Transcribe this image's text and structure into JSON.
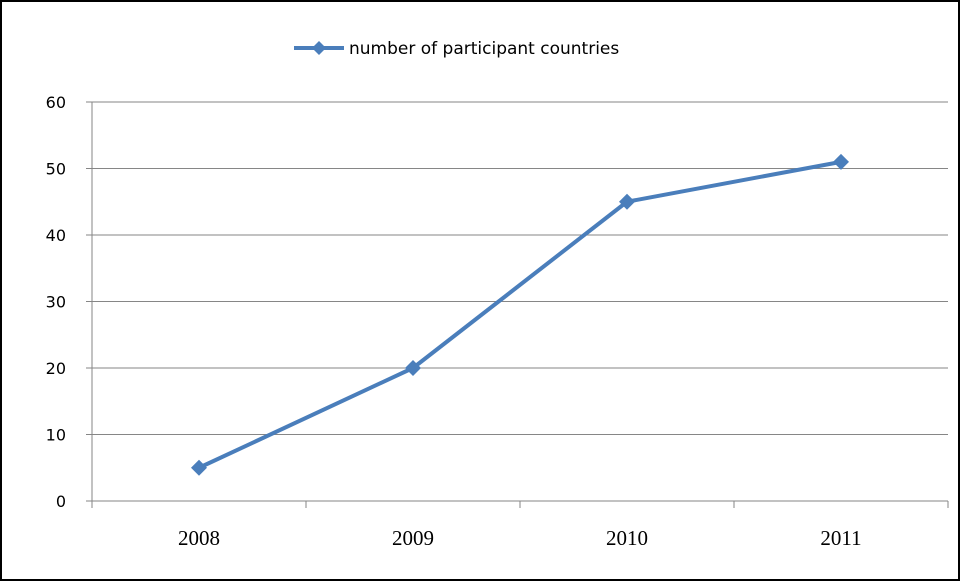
{
  "chart_data": {
    "type": "line",
    "title": "",
    "xlabel": "",
    "ylabel": "",
    "categories": [
      "2008",
      "2009",
      "2010",
      "2011"
    ],
    "series": [
      {
        "name": "number of participant countries",
        "values": [
          5,
          20,
          45,
          51
        ],
        "color": "#4a7ebb",
        "marker": "diamond"
      }
    ],
    "ylim": [
      0,
      60
    ],
    "yticks": [
      "0",
      "10",
      "20",
      "30",
      "40",
      "50",
      "60"
    ],
    "grid": true,
    "legend": "top-center"
  }
}
